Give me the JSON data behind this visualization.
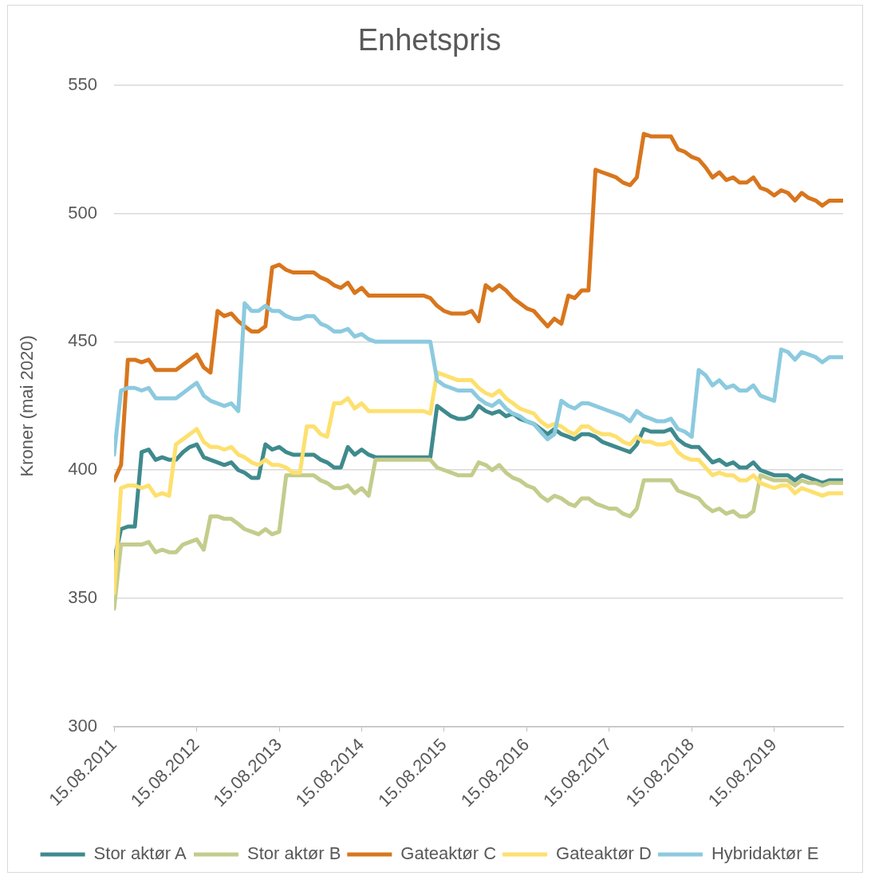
{
  "chart_data": {
    "type": "line",
    "title": "Enhetspris",
    "ylabel": "Kroner (mai 2020)",
    "x": [
      "2011-08-15",
      "2011-09-15",
      "2011-10-15",
      "2011-11-15",
      "2011-12-15",
      "2012-01-15",
      "2012-02-15",
      "2012-03-15",
      "2012-04-15",
      "2012-05-15",
      "2012-06-15",
      "2012-07-15",
      "2012-08-15",
      "2012-09-15",
      "2012-10-15",
      "2012-11-15",
      "2012-12-15",
      "2013-01-15",
      "2013-02-15",
      "2013-03-15",
      "2013-04-15",
      "2013-05-15",
      "2013-06-15",
      "2013-07-15",
      "2013-08-15",
      "2013-09-15",
      "2013-10-15",
      "2013-11-15",
      "2013-12-15",
      "2014-01-15",
      "2014-02-15",
      "2014-03-15",
      "2014-04-15",
      "2014-05-15",
      "2014-06-15",
      "2014-07-15",
      "2014-08-15",
      "2014-09-15",
      "2014-10-15",
      "2014-11-15",
      "2014-12-15",
      "2015-01-15",
      "2015-02-15",
      "2015-03-15",
      "2015-04-15",
      "2015-05-15",
      "2015-06-15",
      "2015-07-15",
      "2015-08-15",
      "2015-09-15",
      "2015-10-15",
      "2015-11-15",
      "2015-12-15",
      "2016-01-15",
      "2016-02-15",
      "2016-03-15",
      "2016-04-15",
      "2016-05-15",
      "2016-06-15",
      "2016-07-15",
      "2016-08-15",
      "2016-09-15",
      "2016-10-15",
      "2016-11-15",
      "2016-12-15",
      "2017-01-15",
      "2017-02-15",
      "2017-03-15",
      "2017-04-15",
      "2017-05-15",
      "2017-06-15",
      "2017-07-15",
      "2017-08-15",
      "2017-09-15",
      "2017-10-15",
      "2017-11-15",
      "2017-12-15",
      "2018-01-15",
      "2018-02-15",
      "2018-03-15",
      "2018-04-15",
      "2018-05-15",
      "2018-06-15",
      "2018-07-15",
      "2018-08-15",
      "2018-09-15",
      "2018-10-15",
      "2018-11-15",
      "2018-12-15",
      "2019-01-15",
      "2019-02-15",
      "2019-03-15",
      "2019-04-15",
      "2019-05-15",
      "2019-06-15",
      "2019-07-15",
      "2019-08-15",
      "2019-09-15",
      "2019-10-15",
      "2019-11-15",
      "2019-12-15",
      "2020-01-15",
      "2020-02-15",
      "2020-03-15",
      "2020-04-15",
      "2020-05-15",
      "2020-06-15"
    ],
    "series": [
      {
        "name": "Stor aktør A",
        "color": "#3f8a8d",
        "values": [
          365,
          377,
          378,
          378,
          407,
          408,
          404,
          405,
          404,
          404,
          407,
          409,
          410,
          405,
          404,
          403,
          402,
          403,
          400,
          399,
          397,
          397,
          410,
          408,
          409,
          407,
          406,
          406,
          406,
          406,
          404,
          403,
          401,
          401,
          409,
          406,
          408,
          406,
          405,
          405,
          405,
          405,
          405,
          405,
          405,
          405,
          405,
          425,
          423,
          421,
          420,
          420,
          421,
          425,
          423,
          422,
          423,
          421,
          422,
          420,
          419,
          418,
          416,
          414,
          416,
          414,
          413,
          412,
          414,
          414,
          413,
          411,
          410,
          409,
          408,
          407,
          410,
          416,
          415,
          415,
          415,
          416,
          412,
          410,
          409,
          409,
          406,
          403,
          404,
          402,
          403,
          401,
          401,
          403,
          400,
          399,
          398,
          398,
          398,
          396,
          398,
          397,
          396,
          395,
          396,
          396,
          396
        ]
      },
      {
        "name": "Stor aktør B",
        "color": "#c4cc8c",
        "values": [
          346,
          371,
          371,
          371,
          371,
          372,
          368,
          369,
          368,
          368,
          371,
          372,
          373,
          369,
          382,
          382,
          381,
          381,
          379,
          377,
          376,
          375,
          377,
          375,
          376,
          398,
          398,
          398,
          398,
          398,
          396,
          395,
          393,
          393,
          394,
          391,
          393,
          390,
          404,
          404,
          404,
          404,
          404,
          404,
          404,
          404,
          404,
          401,
          400,
          399,
          398,
          398,
          398,
          403,
          402,
          400,
          402,
          399,
          397,
          396,
          394,
          393,
          390,
          388,
          390,
          389,
          387,
          386,
          389,
          389,
          387,
          386,
          385,
          385,
          383,
          382,
          385,
          396,
          396,
          396,
          396,
          396,
          392,
          391,
          390,
          389,
          386,
          384,
          385,
          383,
          384,
          382,
          382,
          384,
          398,
          397,
          396,
          396,
          396,
          394,
          396,
          395,
          395,
          394,
          395,
          395,
          395
        ]
      },
      {
        "name": "Gateaktør C",
        "color": "#d8761d",
        "values": [
          396,
          402,
          443,
          443,
          442,
          443,
          439,
          439,
          439,
          439,
          441,
          443,
          445,
          440,
          438,
          462,
          460,
          461,
          458,
          456,
          454,
          454,
          456,
          479,
          480,
          478,
          477,
          477,
          477,
          477,
          475,
          474,
          472,
          471,
          473,
          469,
          471,
          468,
          468,
          468,
          468,
          468,
          468,
          468,
          468,
          468,
          467,
          464,
          462,
          461,
          461,
          461,
          462,
          458,
          472,
          470,
          472,
          470,
          467,
          465,
          463,
          462,
          459,
          456,
          459,
          457,
          468,
          467,
          470,
          470,
          517,
          516,
          515,
          514,
          512,
          511,
          514,
          531,
          530,
          530,
          530,
          530,
          525,
          524,
          522,
          521,
          518,
          514,
          516,
          513,
          514,
          512,
          512,
          514,
          510,
          509,
          507,
          509,
          508,
          505,
          508,
          506,
          505,
          503,
          505,
          505,
          505
        ]
      },
      {
        "name": "Gateaktør D",
        "color": "#fde06e",
        "values": [
          352,
          393,
          394,
          394,
          393,
          394,
          390,
          391,
          390,
          410,
          412,
          414,
          416,
          411,
          409,
          409,
          408,
          409,
          406,
          405,
          403,
          402,
          404,
          402,
          402,
          401,
          399,
          399,
          417,
          417,
          414,
          413,
          426,
          426,
          428,
          424,
          426,
          423,
          423,
          423,
          423,
          423,
          423,
          423,
          423,
          423,
          422,
          438,
          437,
          436,
          435,
          435,
          435,
          432,
          430,
          429,
          431,
          428,
          426,
          424,
          423,
          422,
          419,
          417,
          418,
          417,
          415,
          414,
          417,
          417,
          415,
          414,
          414,
          413,
          411,
          410,
          413,
          411,
          411,
          410,
          410,
          411,
          407,
          405,
          404,
          404,
          401,
          398,
          399,
          398,
          398,
          396,
          396,
          398,
          395,
          394,
          393,
          394,
          394,
          391,
          393,
          392,
          391,
          390,
          391,
          391,
          391
        ]
      },
      {
        "name": "Hybridaktør E",
        "color": "#8ccadf",
        "values": [
          406,
          431,
          432,
          432,
          431,
          432,
          428,
          428,
          428,
          428,
          430,
          432,
          434,
          429,
          427,
          426,
          425,
          426,
          423,
          465,
          462,
          462,
          464,
          462,
          462,
          460,
          459,
          459,
          460,
          460,
          457,
          456,
          454,
          454,
          455,
          452,
          453,
          451,
          450,
          450,
          450,
          450,
          450,
          450,
          450,
          450,
          450,
          435,
          433,
          432,
          431,
          431,
          431,
          428,
          426,
          425,
          427,
          424,
          422,
          421,
          419,
          418,
          415,
          412,
          414,
          427,
          425,
          424,
          426,
          426,
          425,
          424,
          423,
          422,
          421,
          419,
          423,
          421,
          420,
          419,
          419,
          420,
          416,
          415,
          413,
          439,
          437,
          433,
          435,
          432,
          433,
          431,
          431,
          433,
          429,
          428,
          427,
          447,
          446,
          443,
          446,
          445,
          444,
          442,
          444,
          444,
          444
        ]
      }
    ],
    "xlim": [
      "2011-08-15",
      "2020-06-15"
    ],
    "xticks": [
      {
        "value": "2011-08-15",
        "label": "15.08.2011"
      },
      {
        "value": "2012-08-15",
        "label": "15.08.2012"
      },
      {
        "value": "2013-08-15",
        "label": "15.08.2013"
      },
      {
        "value": "2014-08-15",
        "label": "15.08.2014"
      },
      {
        "value": "2015-08-15",
        "label": "15.08.2015"
      },
      {
        "value": "2016-08-15",
        "label": "15.08.2016"
      },
      {
        "value": "2017-08-15",
        "label": "15.08.2017"
      },
      {
        "value": "2018-08-15",
        "label": "15.08.2018"
      },
      {
        "value": "2019-08-15",
        "label": "15.08.2019"
      }
    ],
    "ylim": [
      300,
      550
    ],
    "yticks": [
      300,
      350,
      400,
      450,
      500,
      550
    ],
    "grid": "y",
    "legend": "bottom",
    "marker": "none",
    "line_style": "solid"
  }
}
